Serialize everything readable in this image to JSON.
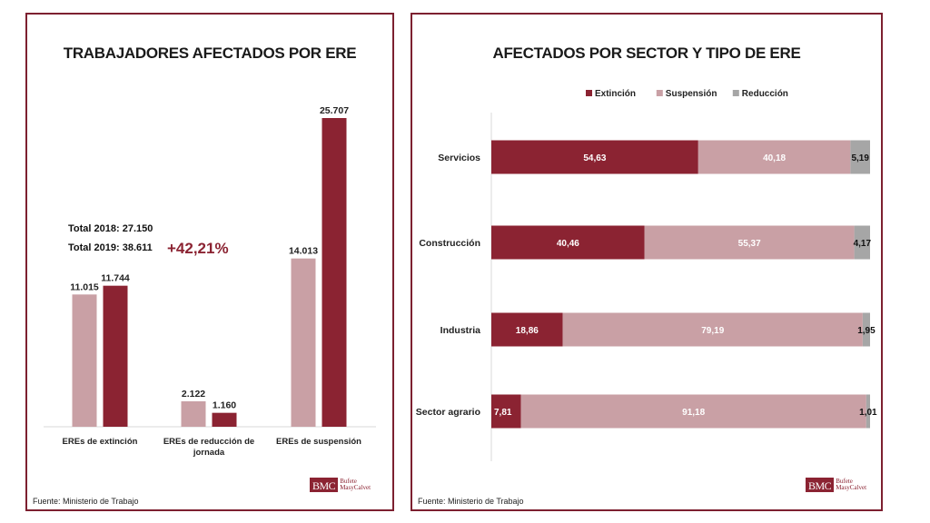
{
  "colors": {
    "extincion": "#8b2332",
    "suspension": "#c9a0a5",
    "reduccion": "#a6a6a6",
    "border": "#7d2030"
  },
  "left": {
    "title": "TRABAJADORES AFECTADOS POR ERE",
    "total2018": "Total 2018: 27.150",
    "total2019": "Total 2019: 38.611",
    "change": "+42,21%",
    "source": "Fuente: Ministerio de Trabajo"
  },
  "right": {
    "title": "AFECTADOS POR SECTOR Y TIPO DE ERE",
    "source": "Fuente: Ministerio de Trabajo"
  },
  "logo": {
    "mark": "BMC",
    "line1": "Bufete",
    "line2": "MasyCalvet"
  },
  "chart_data": [
    {
      "type": "bar",
      "title": "TRABAJADORES AFECTADOS POR ERE",
      "categories": [
        [
          "EREs de extinción"
        ],
        [
          "EREs de reducción de",
          "jornada"
        ],
        [
          "EREs de suspensión"
        ]
      ],
      "series": [
        {
          "values": [
            11015,
            2122,
            14013
          ],
          "labels": [
            "11.015",
            "2.122",
            "14.013"
          ],
          "color": "#c9a0a5"
        },
        {
          "values": [
            11744,
            1160,
            25707
          ],
          "labels": [
            "11.744",
            "1.160",
            "25.707"
          ],
          "color": "#8b2332"
        }
      ],
      "ylim": [
        0,
        25707
      ],
      "grid": false
    },
    {
      "type": "bar",
      "orientation": "horizontal",
      "stacked": true,
      "title": "AFECTADOS POR SECTOR Y TIPO DE ERE",
      "categories": [
        "Servicios",
        "Construcción",
        "Industria",
        "Sector agrario"
      ],
      "series": [
        {
          "name": "Extinción",
          "values": [
            54.63,
            40.46,
            18.86,
            7.81
          ],
          "labels": [
            "54,63",
            "40,46",
            "18,86",
            "7,81"
          ],
          "color": "#8b2332"
        },
        {
          "name": "Suspensión",
          "values": [
            40.18,
            55.37,
            79.19,
            91.18
          ],
          "labels": [
            "40,18",
            "55,37",
            "79,19",
            "91,18"
          ],
          "color": "#c9a0a5"
        },
        {
          "name": "Reducción",
          "values": [
            5.19,
            4.17,
            1.95,
            1.01
          ],
          "labels": [
            "5,19",
            "4,17",
            "1,95",
            "1,01"
          ],
          "color": "#a6a6a6"
        }
      ],
      "xlim": [
        0,
        100
      ],
      "legend": "top",
      "grid": false
    }
  ]
}
